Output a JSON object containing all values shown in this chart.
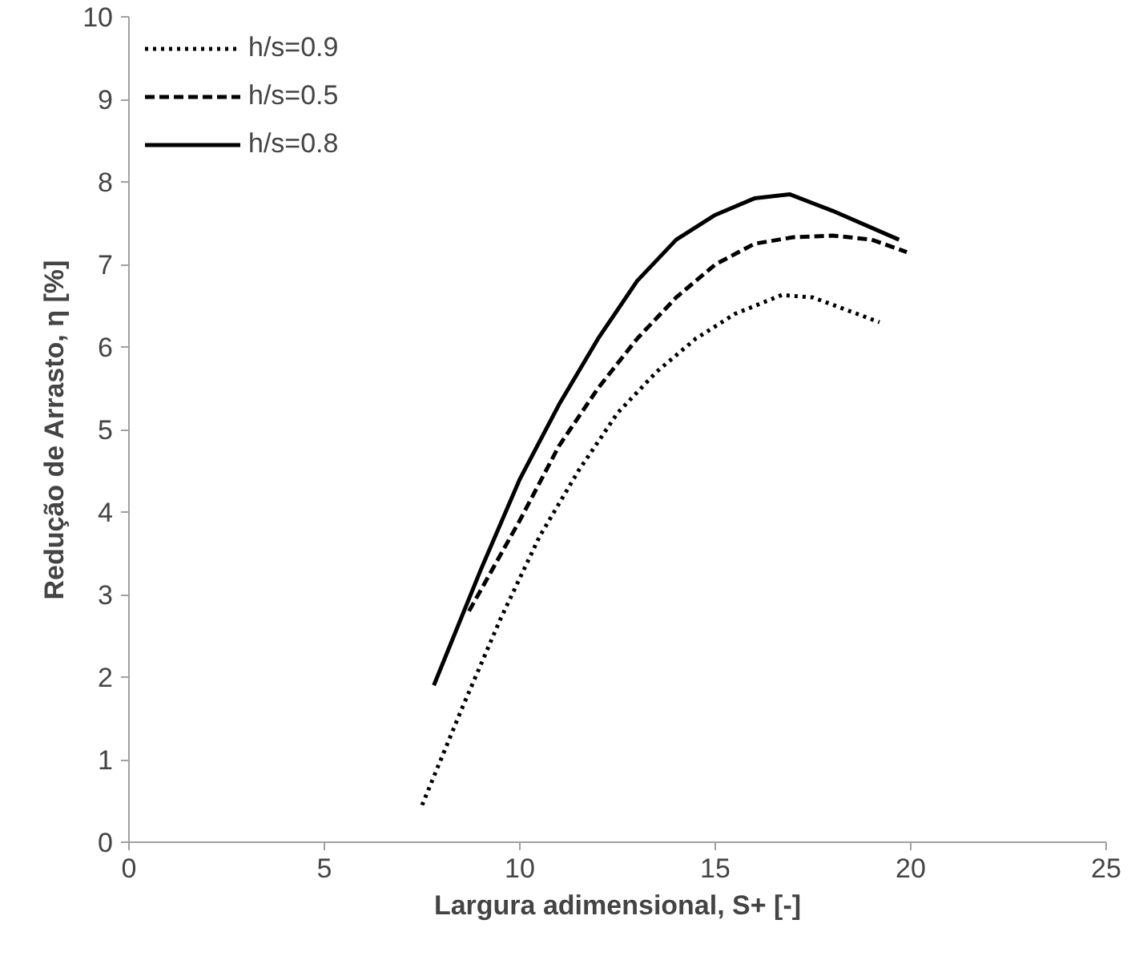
{
  "chart_data": {
    "type": "line",
    "xlabel": "Largura adimensional, S+ [-]",
    "ylabel": "Redução de Arrasto, η [%]",
    "xlim": [
      0,
      25
    ],
    "xticks": [
      0,
      5,
      10,
      15,
      20,
      25
    ],
    "ylim": [
      0,
      10
    ],
    "yticks": [
      0,
      1,
      2,
      3,
      4,
      5,
      6,
      7,
      8,
      9,
      10
    ],
    "grid": false,
    "legend": "top left",
    "series": [
      {
        "name": "h/s=0.9",
        "color": "#000000",
        "line_style": "dotted",
        "x": [
          7.5,
          8.5,
          9.5,
          10.5,
          11.5,
          12.5,
          13.5,
          14.5,
          15.5,
          16.7,
          17.5,
          19.2
        ],
        "values": [
          0.45,
          1.6,
          2.7,
          3.7,
          4.5,
          5.2,
          5.7,
          6.1,
          6.4,
          6.63,
          6.6,
          6.3
        ]
      },
      {
        "name": "h/s=0.5",
        "color": "#000000",
        "line_style": "dashed",
        "x": [
          8.7,
          10,
          11,
          12,
          13,
          14,
          15,
          16,
          17,
          18,
          19,
          19.9
        ],
        "values": [
          2.8,
          3.9,
          4.8,
          5.5,
          6.1,
          6.6,
          7.0,
          7.25,
          7.33,
          7.35,
          7.3,
          7.15
        ]
      },
      {
        "name": "h/s=0.8",
        "color": "#000000",
        "line_style": "solid",
        "x": [
          7.8,
          9,
          10,
          11,
          12,
          13,
          14,
          15,
          16,
          16.9,
          18,
          19.7
        ],
        "values": [
          1.9,
          3.3,
          4.4,
          5.3,
          6.1,
          6.8,
          7.3,
          7.6,
          7.8,
          7.85,
          7.65,
          7.3
        ]
      }
    ]
  }
}
